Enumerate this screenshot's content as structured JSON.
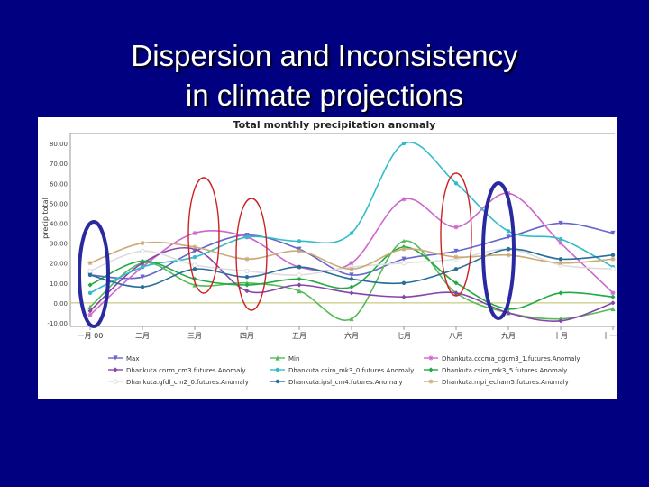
{
  "slide": {
    "title_line1": "Dispersion and Inconsistency",
    "title_line2": "in climate projections"
  },
  "colors": {
    "background": "#000080",
    "title": "#ffffff",
    "highlight_red": "#cc2222",
    "highlight_blue": "#2a2aa0"
  },
  "chart_data": {
    "type": "line",
    "title": "Total monthly precipitation anomaly",
    "ylabel": "precip total",
    "xlabel": "",
    "ylim": [
      -10,
      85
    ],
    "yticks": [
      "-10.00",
      "0.00",
      "10.00",
      "20.00",
      "30.00",
      "40.00",
      "50.00",
      "60.00",
      "70.00",
      "80.00"
    ],
    "ytick_values": [
      -10,
      0,
      10,
      20,
      30,
      40,
      50,
      60,
      70,
      80
    ],
    "categories": [
      "一月 00",
      "二月",
      "三月",
      "四月",
      "五月",
      "六月",
      "七月",
      "八月",
      "九月",
      "十月",
      "十一月"
    ],
    "grid": false,
    "legend_position": "bottom",
    "series": [
      {
        "name": "Max",
        "color": "#6666cc",
        "marker": "triangle-down",
        "values": [
          14,
          13,
          26,
          34,
          27,
          14,
          22,
          26,
          33,
          40,
          35
        ]
      },
      {
        "name": "Min",
        "color": "#55bb55",
        "marker": "triangle-up",
        "values": [
          -2,
          20,
          9,
          10,
          6,
          -8,
          31,
          5,
          -5,
          -8,
          -3
        ]
      },
      {
        "name": "Dhankuta.cccma_cgcm3_1.futures.Anomaly",
        "color": "#cc66cc",
        "marker": "star",
        "values": [
          -6,
          18,
          35,
          33,
          18,
          20,
          52,
          38,
          55,
          30,
          5
        ]
      },
      {
        "name": "Dhankuta.cnrm_cm3.futures.Anomaly",
        "color": "#8844aa",
        "marker": "diamond",
        "values": [
          -4,
          20,
          27,
          6,
          9,
          5,
          3,
          5,
          -5,
          -9,
          0
        ]
      },
      {
        "name": "Dhankuta.csiro_mk3_0.futures.Anomaly",
        "color": "#33bbcc",
        "marker": "circle",
        "values": [
          5,
          18,
          23,
          33,
          31,
          35,
          80,
          60,
          36,
          32,
          18
        ]
      },
      {
        "name": "Dhankuta.csiro_mk3_5.futures.Anomaly",
        "color": "#22aa44",
        "marker": "diamond",
        "values": [
          9,
          21,
          12,
          9,
          12,
          8,
          28,
          10,
          -3,
          5,
          3
        ]
      },
      {
        "name": "Dhankuta.gfdl_cm2_0.futures.Anomaly",
        "color": "#dddddd",
        "marker": "circle-open",
        "values": [
          16,
          26,
          19,
          16,
          14,
          18,
          20,
          22,
          27,
          19,
          17
        ]
      },
      {
        "name": "Dhankuta.ipsl_cm4.futures.Anomaly",
        "color": "#2a6f9a",
        "marker": "circle",
        "values": [
          14,
          8,
          17,
          13,
          18,
          12,
          10,
          17,
          27,
          22,
          24
        ]
      },
      {
        "name": "Dhankuta.mpi_echam5.futures.Anomaly",
        "color": "#ccaa77",
        "marker": "star",
        "values": [
          20,
          30,
          28,
          22,
          26,
          17,
          27,
          23,
          24,
          20,
          22
        ]
      }
    ]
  }
}
